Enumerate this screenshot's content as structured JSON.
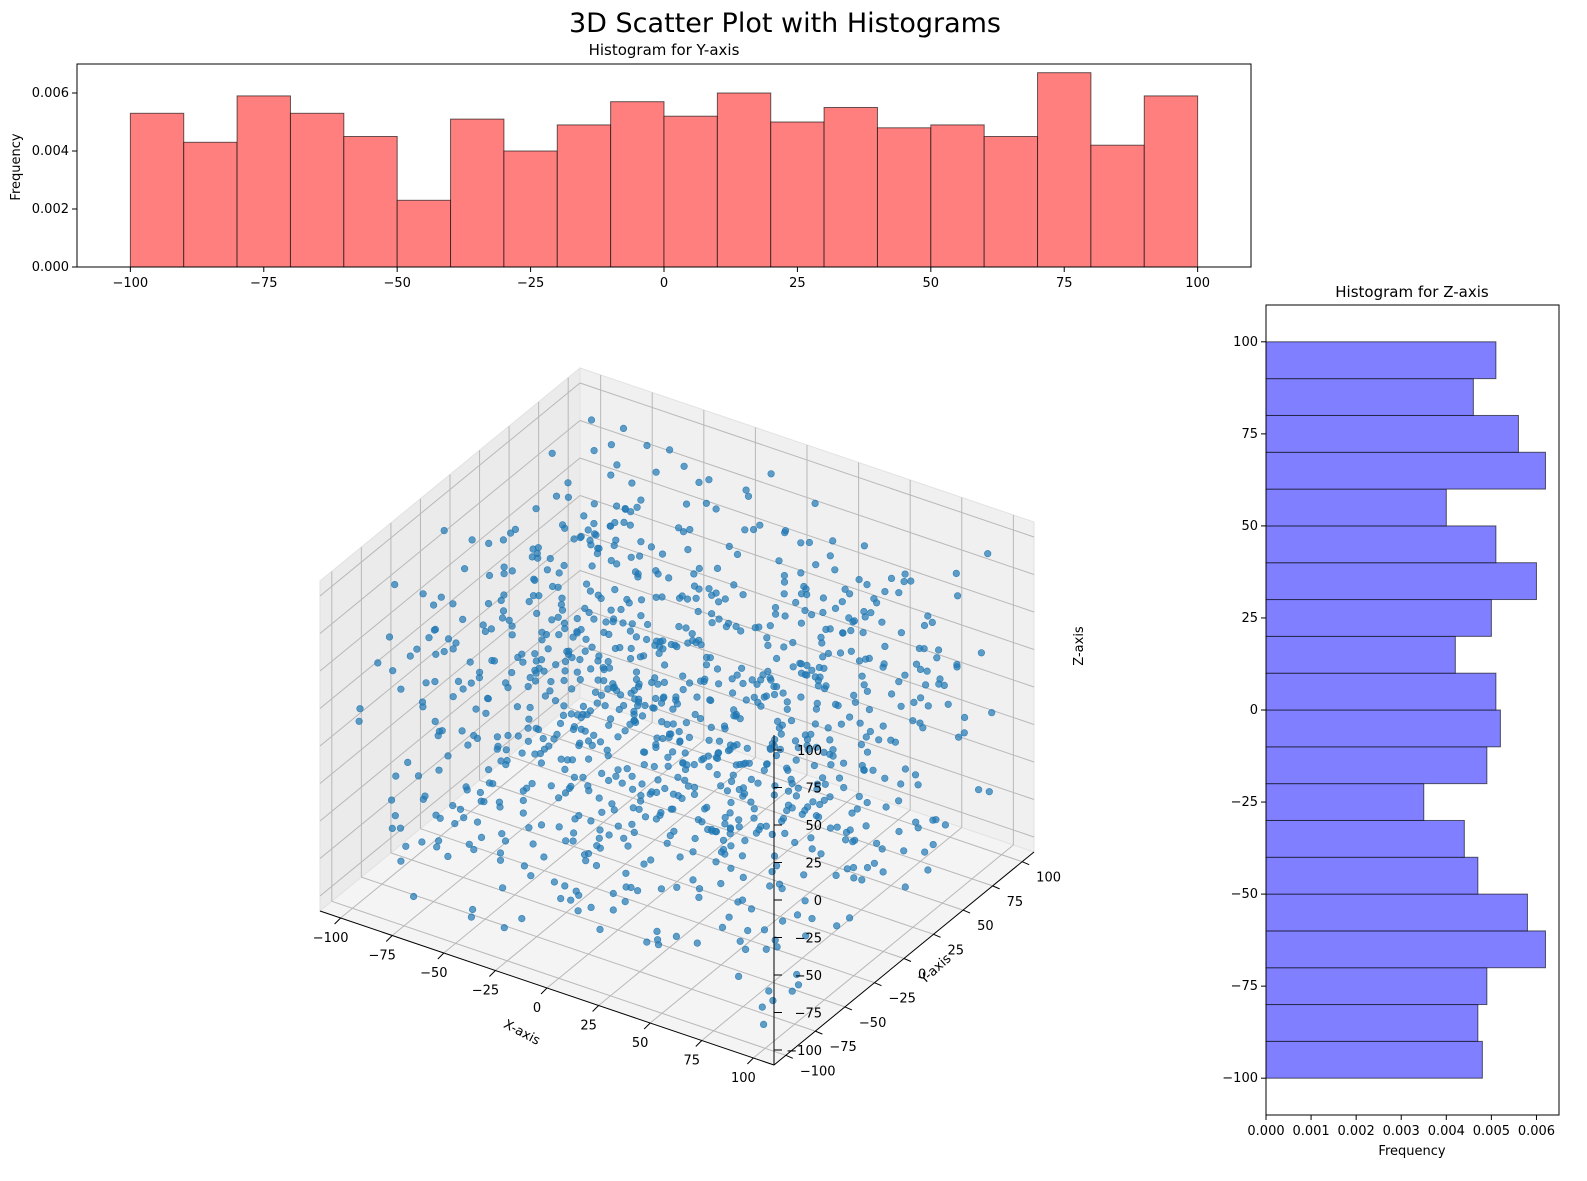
{
  "figure": {
    "title": "3D Scatter Plot with Histograms"
  },
  "chart_data": [
    {
      "type": "bar",
      "name": "y-histogram",
      "title": "Histogram for Y-axis",
      "xlabel": "",
      "ylabel": "Frequency",
      "xlim": [
        -110,
        110
      ],
      "ylim": [
        0,
        0.007
      ],
      "xticks": [
        "−100",
        "−75",
        "−50",
        "−25",
        "0",
        "25",
        "50",
        "75",
        "100"
      ],
      "xtick_values": [
        -100,
        -75,
        -50,
        -25,
        0,
        25,
        50,
        75,
        100
      ],
      "yticks": [
        "0.000",
        "0.002",
        "0.004",
        "0.006"
      ],
      "ytick_values": [
        0,
        0.002,
        0.004,
        0.006
      ],
      "bin_edges": [
        -100,
        -90,
        -80,
        -70,
        -60,
        -50,
        -40,
        -30,
        -20,
        -10,
        0,
        10,
        20,
        30,
        40,
        50,
        60,
        70,
        80,
        90,
        100
      ],
      "values": [
        0.0053,
        0.0043,
        0.0059,
        0.0053,
        0.0045,
        0.0023,
        0.0051,
        0.004,
        0.0049,
        0.0057,
        0.0052,
        0.006,
        0.005,
        0.0055,
        0.0048,
        0.0049,
        0.0045,
        0.0067,
        0.0042,
        0.0059
      ],
      "color": "#ff7f7f",
      "edge_color": "#000000"
    },
    {
      "type": "bar",
      "orientation": "horizontal",
      "name": "z-histogram",
      "title": "Histogram for Z-axis",
      "xlabel": "Frequency",
      "ylabel": "",
      "xlim": [
        0,
        0.0065
      ],
      "ylim": [
        -110,
        110
      ],
      "xticks": [
        "0.000",
        "0.001",
        "0.002",
        "0.003",
        "0.004",
        "0.005",
        "0.006"
      ],
      "xtick_values": [
        0,
        0.001,
        0.002,
        0.003,
        0.004,
        0.005,
        0.006
      ],
      "yticks": [
        "100",
        "75",
        "50",
        "25",
        "0",
        "−25",
        "−50",
        "−75",
        "−100"
      ],
      "ytick_values": [
        100,
        75,
        50,
        25,
        0,
        -25,
        -50,
        -75,
        -100
      ],
      "bin_edges": [
        -100,
        -90,
        -80,
        -70,
        -60,
        -50,
        -40,
        -30,
        -20,
        -10,
        0,
        10,
        20,
        30,
        40,
        50,
        60,
        70,
        80,
        90,
        100
      ],
      "values": [
        0.0048,
        0.0047,
        0.0049,
        0.0062,
        0.0058,
        0.0047,
        0.0044,
        0.0035,
        0.0049,
        0.0052,
        0.0051,
        0.0042,
        0.005,
        0.006,
        0.0051,
        0.004,
        0.0062,
        0.0056,
        0.0046,
        0.0051
      ],
      "color": "#7f7fff",
      "edge_color": "#000000"
    },
    {
      "type": "scatter",
      "name": "3d-scatter",
      "projection": "3d",
      "xlabel": "X-axis",
      "ylabel": "Y-axis",
      "zlabel": "Z-axis",
      "xlim": [
        -110,
        110
      ],
      "ylim": [
        -110,
        110
      ],
      "zlim": [
        -110,
        110
      ],
      "xticks": [
        "−100",
        "−75",
        "−50",
        "−25",
        "0",
        "25",
        "50",
        "75",
        "100"
      ],
      "yticks": [
        "−100",
        "−75",
        "−50",
        "−25",
        "0",
        "25",
        "50",
        "75",
        "100"
      ],
      "zticks": [
        "−100",
        "−75",
        "−50",
        "−25",
        "0",
        "25",
        "50",
        "75",
        "100"
      ],
      "tick_values": [
        -100,
        -75,
        -50,
        -25,
        0,
        25,
        50,
        75,
        100
      ],
      "point_count": 1000,
      "point_distribution": "uniform random in [-100, 100] per axis",
      "color": "#1f77b4",
      "alpha": 0.7
    }
  ]
}
